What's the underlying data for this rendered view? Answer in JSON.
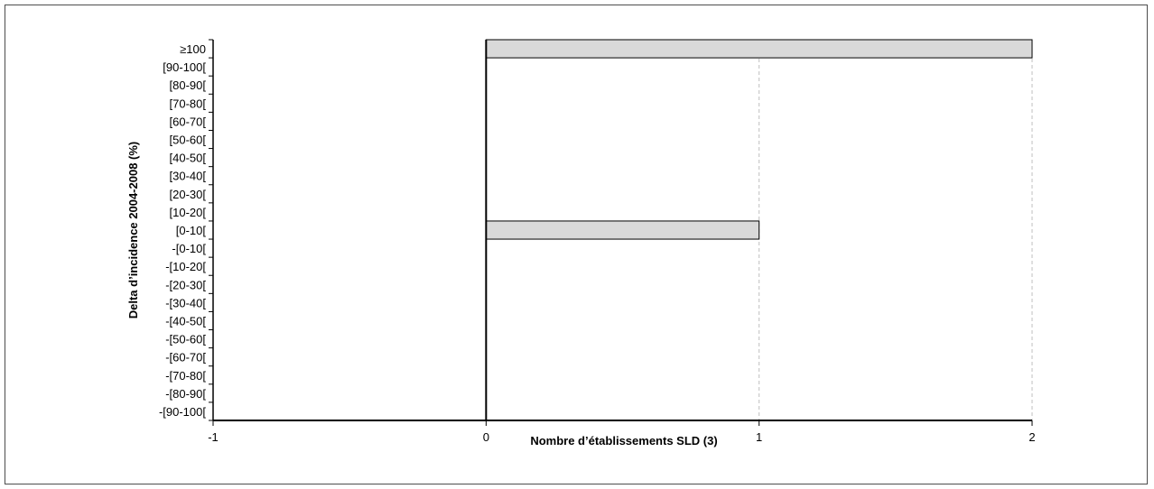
{
  "chart_data": {
    "type": "bar",
    "orientation": "horizontal",
    "categories": [
      "≥100",
      "[90-100[",
      "[80-90[",
      "[70-80[",
      "[60-70[",
      "[50-60[",
      "[40-50[",
      "[30-40[",
      "[20-30[",
      "[10-20[",
      "[0-10[",
      "-[0-10[",
      "-[10-20[",
      "-[20-30[",
      "-[30-40[",
      "-[40-50[",
      "-[50-60[",
      "-[60-70[",
      "-[70-80[",
      "-[80-90[",
      "-[90-100["
    ],
    "values": [
      2,
      0,
      0,
      0,
      0,
      0,
      0,
      0,
      0,
      0,
      1,
      0,
      0,
      0,
      0,
      0,
      0,
      0,
      0,
      0,
      0
    ],
    "xlabel": "Nombre d’établissements SLD (3)",
    "ylabel": "Delta d’incidence 2004-2008 (%)",
    "xlim": [
      -1,
      2
    ],
    "xticks": [
      "-1",
      "0",
      "1",
      "2"
    ],
    "grid": "vertical dashed",
    "legend": "none",
    "colors": {
      "bar_fill": "#d9d9d9",
      "bar_stroke": "#000000",
      "grid": "#bfbfbf",
      "axis": "#000000"
    }
  }
}
